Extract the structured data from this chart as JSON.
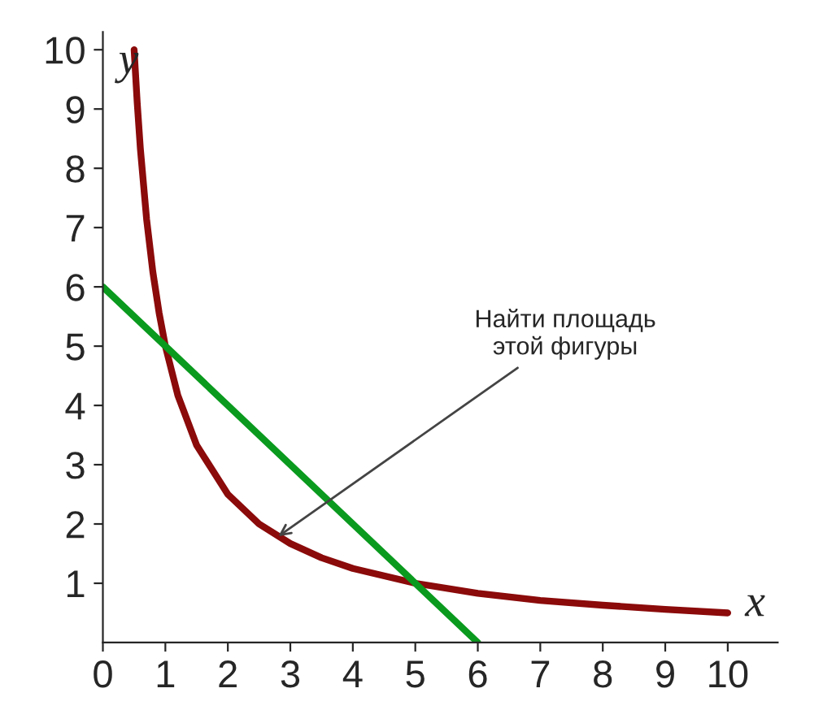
{
  "chart_data": {
    "type": "line",
    "xlabel": "x",
    "ylabel": "y",
    "xlim": [
      0,
      10.8
    ],
    "ylim": [
      0,
      10.3
    ],
    "xticks": [
      0,
      1,
      2,
      3,
      4,
      5,
      6,
      7,
      8,
      9,
      10
    ],
    "yticks": [
      1,
      2,
      3,
      4,
      5,
      6,
      7,
      8,
      9,
      10
    ],
    "series": [
      {
        "color": "#8b0a0a",
        "x": [
          0.5,
          0.55,
          0.6,
          0.7,
          0.8,
          0.9,
          1,
          1.2,
          1.5,
          2,
          2.5,
          3,
          3.5,
          4,
          5,
          6,
          7,
          8,
          9,
          10
        ],
        "values": [
          10,
          9.1,
          8.33,
          7.14,
          6.25,
          5.56,
          5,
          4.17,
          3.33,
          2.5,
          2,
          1.67,
          1.43,
          1.25,
          1,
          0.83,
          0.71,
          0.63,
          0.56,
          0.5
        ]
      },
      {
        "color": "#0a9a1e",
        "x": [
          0,
          6
        ],
        "values": [
          6,
          0
        ]
      }
    ],
    "annotations": [
      {
        "text": "Найти площадь\nэтой фигуры",
        "x": 2.75,
        "y": 1.75
      }
    ],
    "grid": false,
    "legend": false
  }
}
